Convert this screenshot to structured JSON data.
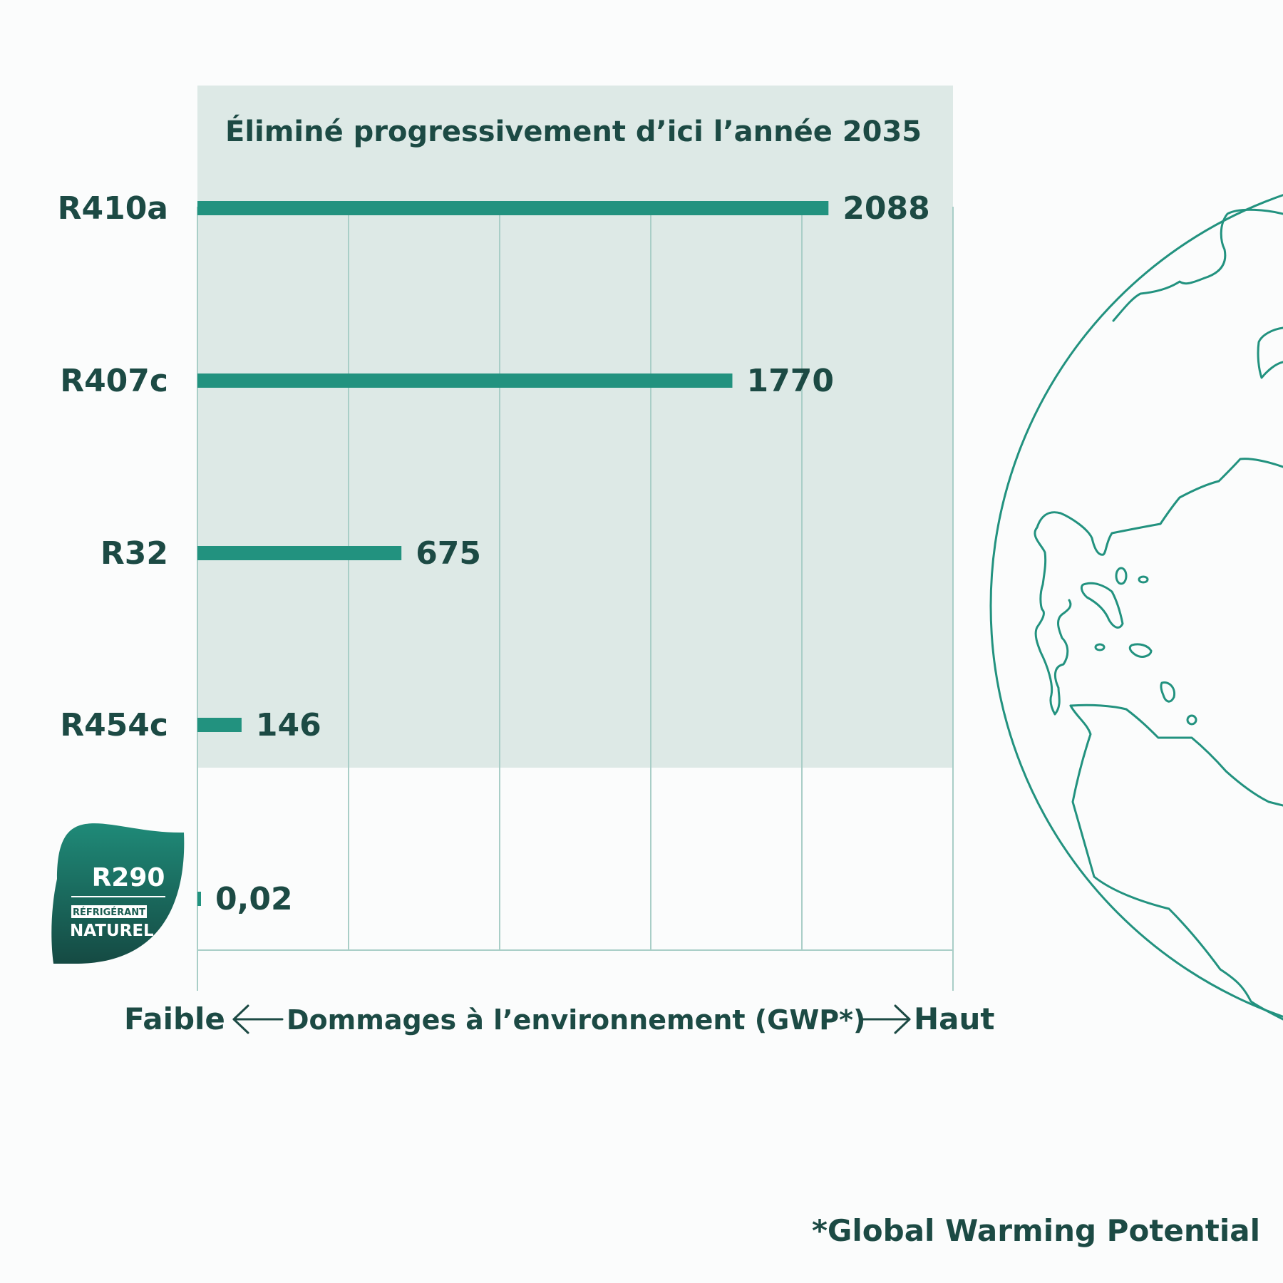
{
  "chart_data": {
    "type": "bar",
    "orientation": "horizontal",
    "shaded_region_title": "Éliminé progressivement d’ici l’année 2035",
    "categories": [
      "R410a",
      "R407c",
      "R32",
      "R454c",
      "R290"
    ],
    "values": [
      2088,
      1770,
      675,
      146,
      0.02
    ],
    "value_labels": [
      "2088",
      "1770",
      "675",
      "146",
      "0,02"
    ],
    "shaded_categories": [
      "R410a",
      "R407c",
      "R32",
      "R454c"
    ],
    "xlim": [
      0,
      2500
    ],
    "grid": true,
    "axis": {
      "low_label": "Faible",
      "title": "Dommages à l’environnement (GWP*)",
      "high_label": "Haut"
    },
    "badge": {
      "name": "R290",
      "tag": "RÉFRIGÉRANT",
      "subtitle": "NATUREL"
    },
    "footnote": "*Global Warming Potential"
  },
  "colors": {
    "bar": "#22927f",
    "text": "#1c4a44",
    "shade": "#dde9e6",
    "grid": "#a9cec7",
    "globe": "#22927f",
    "badge_top": "#1f8a78",
    "badge_bottom": "#154a43"
  }
}
